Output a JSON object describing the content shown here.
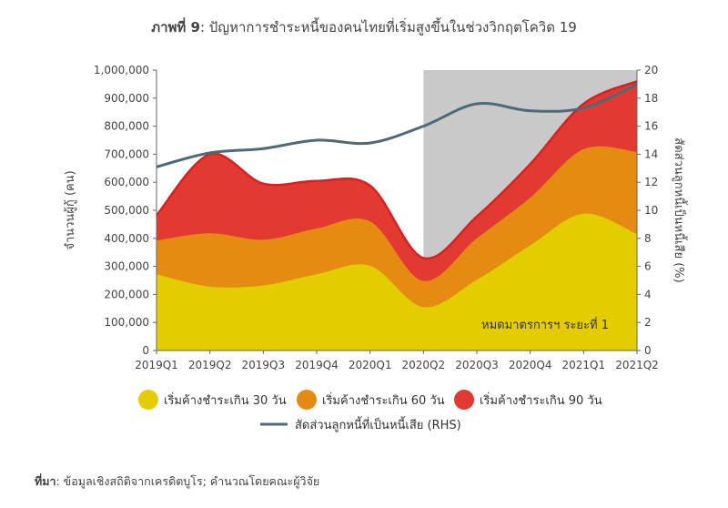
{
  "title": {
    "prefix": "ภาพที่ 9",
    "text": ": ปัญหาการชำระหนี้ของคนไทยที่เริ่มสูงขึ้นในช่วงวิกฤตโควิด 19"
  },
  "source": {
    "label": "ที่มา",
    "text": ": ข้อมูลเชิงสถิติจากเครดิตบูโร; คำนวณโดยคณะผู้วิจัย"
  },
  "chart_data": {
    "type": "area",
    "categories": [
      "2019Q1",
      "2019Q2",
      "2019Q3",
      "2019Q4",
      "2020Q1",
      "2020Q2",
      "2020Q3",
      "2020Q4",
      "2021Q1",
      "2021Q2"
    ],
    "ylabel": "จำนวนผู้กู้ (คน)",
    "y2label": "สัดส่วนลูกหนี้เป็นหนี้เสีย (%)",
    "ylim": [
      0,
      1000000
    ],
    "y2lim": [
      0,
      20
    ],
    "yticks": [
      "0",
      "100,000",
      "200,000",
      "300,000",
      "400,000",
      "500,000",
      "600,000",
      "700,000",
      "800,000",
      "900,000",
      "1,000,000"
    ],
    "y2ticks": [
      "0",
      "2",
      "4",
      "6",
      "8",
      "10",
      "12",
      "14",
      "16",
      "18",
      "20"
    ],
    "stacked_series": [
      {
        "name": "เริ่มค้างชำระเกิน 30 วัน",
        "color": "#e3cc00",
        "values": [
          272000,
          228000,
          232000,
          272000,
          302000,
          155000,
          252000,
          375000,
          488000,
          415000
        ]
      },
      {
        "name": "เริ่มค้างชำระเกิน 60 วัน",
        "color": "#e58a12",
        "values": [
          392000,
          418000,
          395000,
          435000,
          460000,
          248000,
          400000,
          545000,
          718000,
          708000
        ]
      },
      {
        "name": "เริ่มค้างชำระเกิน 90 วัน",
        "color": "#e23a32",
        "values": [
          482000,
          700000,
          595000,
          605000,
          588000,
          330000,
          478000,
          665000,
          880000,
          960000
        ]
      }
    ],
    "line_series": {
      "name": "สัดส่วนลูกหนี้ที่เป็นหนี้เสีย (RHS)",
      "color": "#4e6978",
      "values": [
        13.1,
        14.1,
        14.4,
        15.0,
        14.8,
        16.0,
        17.6,
        17.1,
        17.3,
        19.0
      ]
    },
    "shaded_region": {
      "from": "2020Q2",
      "to": "2021Q2",
      "label": "หมดมาตรการฯ ระยะที่ 1",
      "color": "#c9c9c9"
    },
    "legend_position": "bottom"
  }
}
